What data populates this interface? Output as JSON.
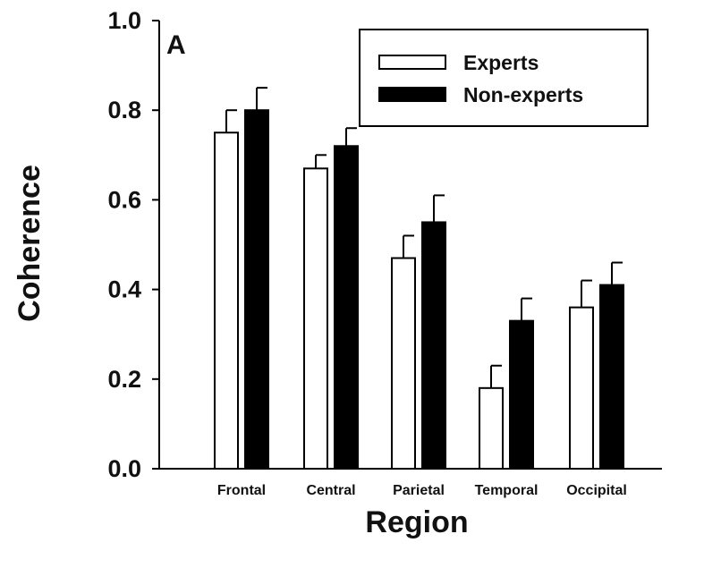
{
  "chart_data": {
    "type": "bar",
    "panel_label": "A",
    "xlabel": "Region",
    "ylabel": "Coherence",
    "ylim": [
      0,
      1.0
    ],
    "yticks": [
      "0.0",
      "0.2",
      "0.4",
      "0.6",
      "0.8",
      "1.0"
    ],
    "categories": [
      "Frontal",
      "Central",
      "Parietal",
      "Temporal",
      "Occipital"
    ],
    "series": [
      {
        "name": "Experts",
        "fill": "#ffffff",
        "values": [
          0.75,
          0.67,
          0.47,
          0.18,
          0.36
        ],
        "errors": [
          0.05,
          0.03,
          0.05,
          0.05,
          0.06
        ]
      },
      {
        "name": "Non-experts",
        "fill": "#000000",
        "values": [
          0.8,
          0.72,
          0.55,
          0.33,
          0.41
        ],
        "errors": [
          0.05,
          0.04,
          0.06,
          0.05,
          0.05
        ]
      }
    ],
    "legend_position": "top-right",
    "grid": false
  }
}
